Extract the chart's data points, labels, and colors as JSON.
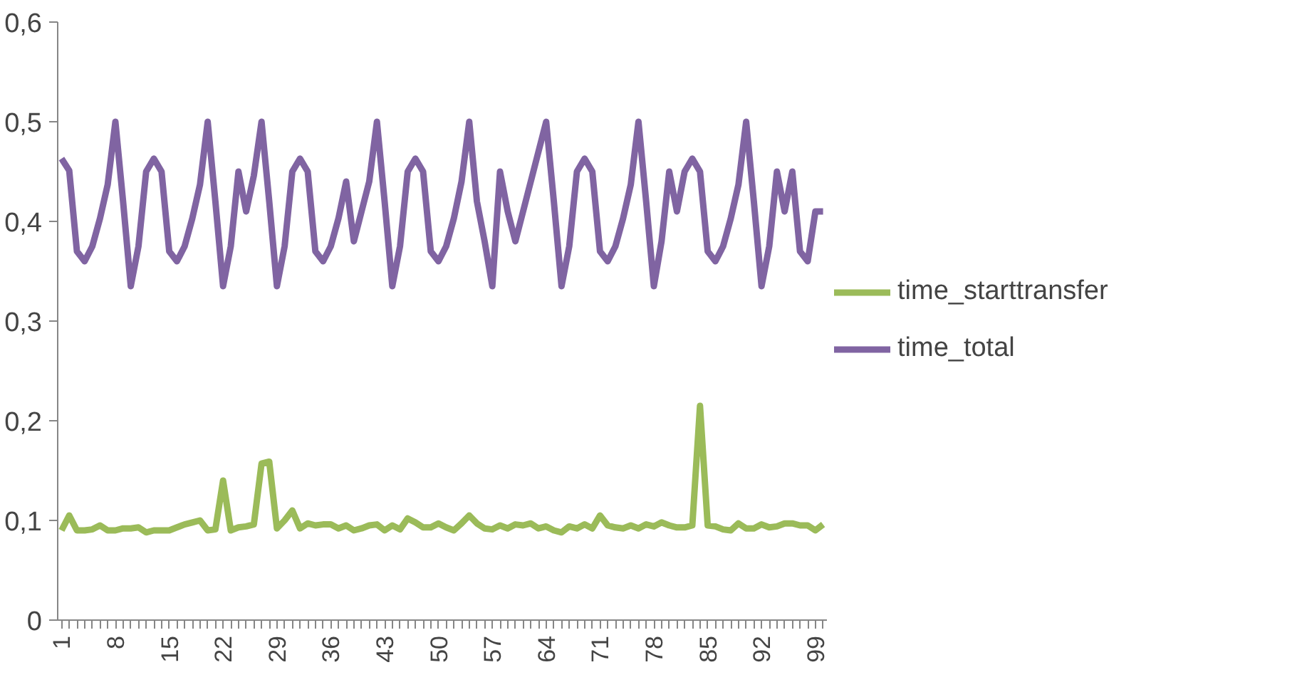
{
  "chart_data": {
    "type": "line",
    "categories": [
      "1",
      null,
      null,
      null,
      null,
      null,
      null,
      "8",
      null,
      null,
      null,
      null,
      null,
      null,
      "15",
      null,
      null,
      null,
      null,
      null,
      null,
      "22",
      null,
      null,
      null,
      null,
      null,
      null,
      "29",
      null,
      null,
      null,
      null,
      null,
      null,
      "36",
      null,
      null,
      null,
      null,
      null,
      null,
      "43",
      null,
      null,
      null,
      null,
      null,
      null,
      "50",
      null,
      null,
      null,
      null,
      null,
      null,
      "57",
      null,
      null,
      null,
      null,
      null,
      null,
      "64",
      null,
      null,
      null,
      null,
      null,
      null,
      "71",
      null,
      null,
      null,
      null,
      null,
      null,
      "78",
      null,
      null,
      null,
      null,
      null,
      null,
      "85",
      null,
      null,
      null,
      null,
      null,
      null,
      "92",
      null,
      null,
      null,
      null,
      null,
      null,
      "99",
      null
    ],
    "series": [
      {
        "name": "time_starttransfer",
        "color": "#9bbb59",
        "values": [
          0.09,
          0.105,
          0.09,
          0.09,
          0.091,
          0.095,
          0.09,
          0.09,
          0.092,
          0.092,
          0.093,
          0.088,
          0.09,
          0.09,
          0.09,
          0.093,
          0.096,
          0.098,
          0.1,
          0.09,
          0.091,
          0.14,
          0.09,
          0.093,
          0.094,
          0.096,
          0.157,
          0.159,
          0.092,
          0.1,
          0.11,
          0.092,
          0.097,
          0.095,
          0.096,
          0.096,
          0.092,
          0.095,
          0.09,
          0.092,
          0.095,
          0.096,
          0.09,
          0.095,
          0.091,
          0.102,
          0.098,
          0.093,
          0.093,
          0.097,
          0.093,
          0.09,
          0.097,
          0.105,
          0.097,
          0.092,
          0.091,
          0.095,
          0.092,
          0.096,
          0.095,
          0.097,
          0.092,
          0.094,
          0.09,
          0.088,
          0.094,
          0.092,
          0.096,
          0.092,
          0.105,
          0.095,
          0.093,
          0.092,
          0.095,
          0.092,
          0.096,
          0.094,
          0.098,
          0.095,
          0.093,
          0.093,
          0.095,
          0.215,
          0.095,
          0.094,
          0.091,
          0.09,
          0.097,
          0.092,
          0.092,
          0.096,
          0.093,
          0.094,
          0.097,
          0.097,
          0.095,
          0.095,
          0.09,
          0.096
        ]
      },
      {
        "name": "time_total",
        "color": "#8064a2",
        "values": [
          0.463,
          0.451,
          0.37,
          0.36,
          0.375,
          0.403,
          0.437,
          0.5,
          0.42,
          0.335,
          0.375,
          0.45,
          0.463,
          0.45,
          0.37,
          0.36,
          0.375,
          0.403,
          0.437,
          0.5,
          0.42,
          0.335,
          0.375,
          0.45,
          0.41,
          0.446,
          0.5,
          0.42,
          0.335,
          0.375,
          0.45,
          0.463,
          0.45,
          0.37,
          0.36,
          0.375,
          0.403,
          0.44,
          0.38,
          0.41,
          0.44,
          0.5,
          0.42,
          0.335,
          0.375,
          0.45,
          0.463,
          0.45,
          0.37,
          0.36,
          0.375,
          0.403,
          0.44,
          0.5,
          0.42,
          0.38,
          0.335,
          0.45,
          0.41,
          0.38,
          0.41,
          0.44,
          0.47,
          0.5,
          0.42,
          0.335,
          0.375,
          0.45,
          0.463,
          0.45,
          0.37,
          0.36,
          0.375,
          0.403,
          0.437,
          0.5,
          0.42,
          0.335,
          0.38,
          0.45,
          0.41,
          0.45,
          0.463,
          0.45,
          0.37,
          0.36,
          0.375,
          0.403,
          0.437,
          0.5,
          0.42,
          0.335,
          0.375,
          0.45,
          0.41,
          0.45,
          0.37,
          0.36,
          0.41,
          0.41
        ]
      }
    ],
    "ylim": [
      0,
      0.6
    ],
    "yticks": [
      0,
      {
        "value": 0.1,
        "label": "0,1"
      },
      {
        "value": 0.2,
        "label": "0,2"
      },
      {
        "value": 0.3,
        "label": "0,3"
      },
      {
        "value": 0.4,
        "label": "0,4"
      },
      {
        "value": 0.5,
        "label": "0,5"
      },
      {
        "value": 0.6,
        "label": "0,6"
      }
    ],
    "grid": false,
    "legend": "right",
    "marker": "none",
    "line_style": "solid"
  }
}
